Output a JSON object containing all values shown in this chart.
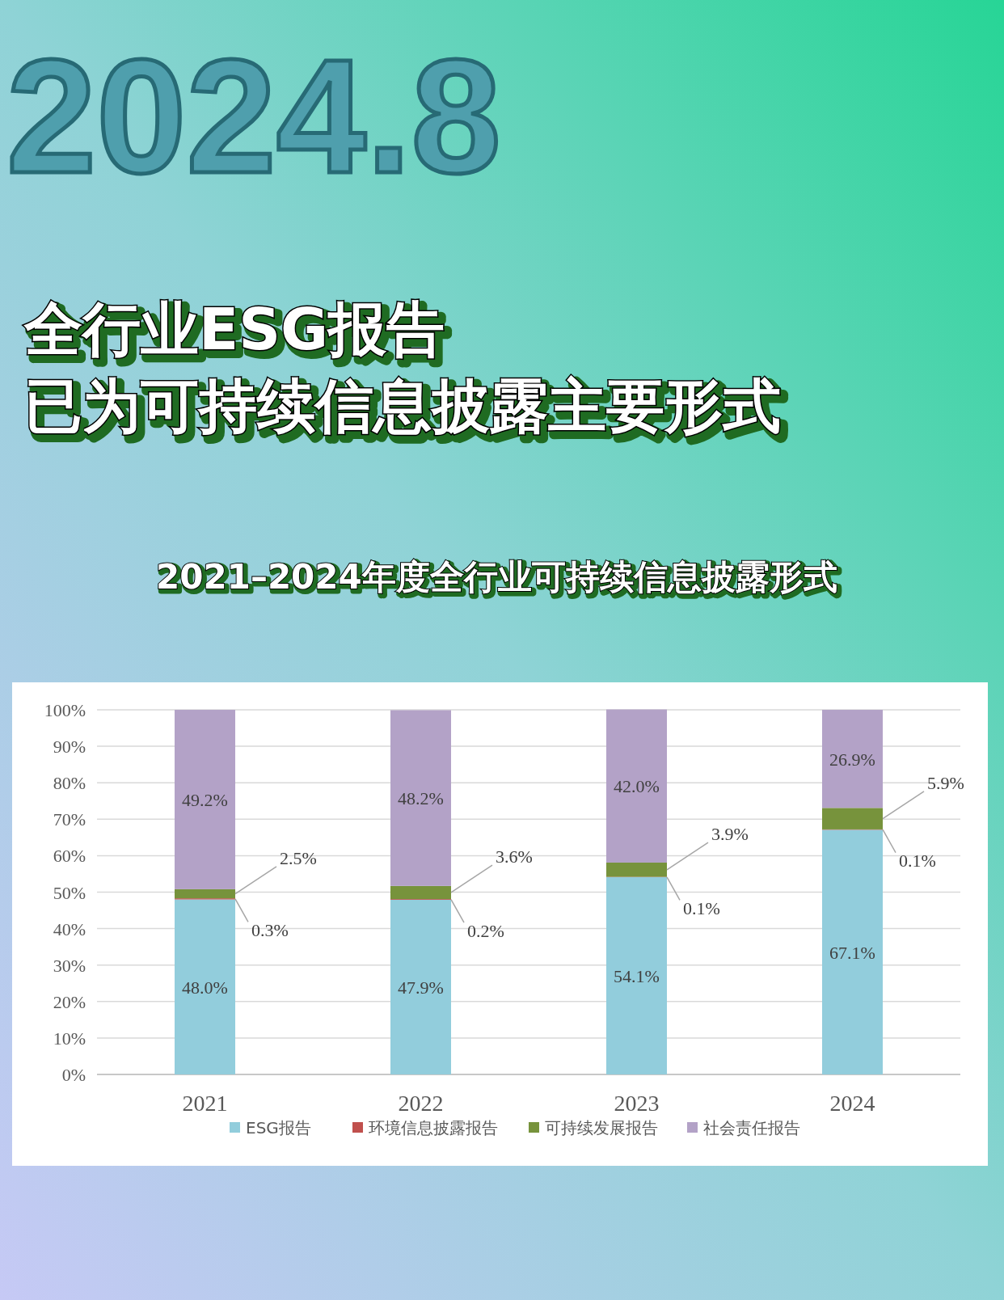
{
  "chart_data": {
    "type": "bar",
    "stacked": true,
    "title": "全行业ESG报告已为可持续信息披露主要形式",
    "subtitle": "2021–2024年度全行业可持续信息披露形式",
    "annotations": [
      "2024.8"
    ],
    "categories": [
      "2021",
      "2022",
      "2023",
      "2024"
    ],
    "series": [
      {
        "name": "ESG报告",
        "color": "#92cddc",
        "values": [
          48.0,
          47.9,
          54.1,
          67.1
        ],
        "value_labels": [
          "48.0%",
          "47.9%",
          "54.1%",
          "67.1%"
        ]
      },
      {
        "name": "环境信息披露报告",
        "color": "#c0504d",
        "values": [
          0.3,
          0.2,
          0.1,
          0.1
        ],
        "value_labels": [
          "0.3%",
          "0.2%",
          "0.1%",
          "0.1%"
        ]
      },
      {
        "name": "可持续发展报告",
        "color": "#77933c",
        "values": [
          2.5,
          3.6,
          3.9,
          5.9
        ],
        "value_labels": [
          "2.5%",
          "3.6%",
          "3.9%",
          "5.9%"
        ]
      },
      {
        "name": "社会责任报告",
        "color": "#b3a2c7",
        "values": [
          49.2,
          48.2,
          42.0,
          26.9
        ],
        "value_labels": [
          "49.2%",
          "48.2%",
          "42.0%",
          "26.9%"
        ]
      }
    ],
    "ylim": [
      0,
      100
    ],
    "yticks": [
      {
        "value": 0,
        "label": "0%"
      },
      {
        "value": 10,
        "label": "10%"
      },
      {
        "value": 20,
        "label": "20%"
      },
      {
        "value": 30,
        "label": "30%"
      },
      {
        "value": 40,
        "label": "40%"
      },
      {
        "value": 50,
        "label": "50%"
      },
      {
        "value": 60,
        "label": "60%"
      },
      {
        "value": 70,
        "label": "70%"
      },
      {
        "value": 80,
        "label": "80%"
      },
      {
        "value": 90,
        "label": "90%"
      },
      {
        "value": 100,
        "label": "100%"
      }
    ],
    "grid": "y",
    "legend": "bottom"
  }
}
